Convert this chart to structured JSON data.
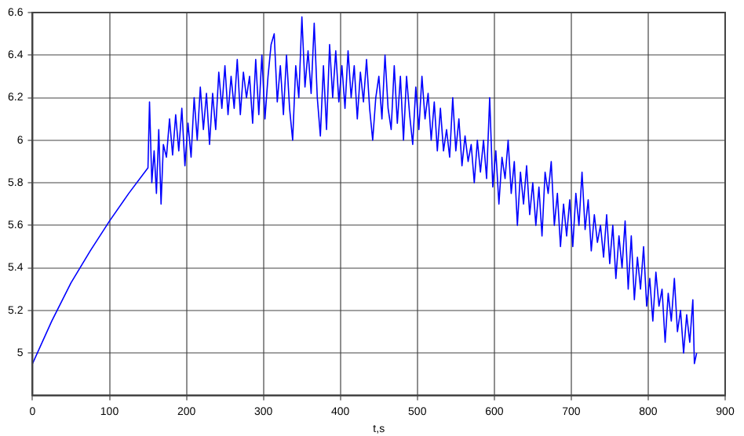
{
  "chart_data": {
    "type": "line",
    "xlabel": "t,s",
    "xlim": [
      0,
      900
    ],
    "xticks": [
      0,
      100,
      200,
      300,
      400,
      500,
      600,
      700,
      800,
      900
    ],
    "ylim": [
      4.8,
      6.6
    ],
    "yticks": [
      5,
      5.2,
      5.4,
      5.6,
      5.8,
      6,
      6.2,
      6.4,
      6.6
    ],
    "grid": true,
    "marker": "none",
    "line_style": "solid",
    "series": [
      {
        "color": "#0000ff",
        "x": [
          0,
          25,
          50,
          75,
          100,
          125,
          150,
          152,
          155,
          158,
          161,
          164,
          167,
          170,
          174,
          178,
          182,
          186,
          190,
          194,
          198,
          202,
          206,
          210,
          214,
          218,
          222,
          226,
          230,
          234,
          238,
          242,
          246,
          250,
          254,
          258,
          262,
          266,
          270,
          274,
          278,
          282,
          286,
          290,
          294,
          298,
          302,
          306,
          310,
          314,
          318,
          322,
          326,
          330,
          334,
          338,
          342,
          346,
          350,
          354,
          358,
          362,
          366,
          370,
          374,
          378,
          382,
          386,
          390,
          394,
          398,
          402,
          406,
          410,
          414,
          418,
          422,
          426,
          430,
          434,
          438,
          442,
          446,
          450,
          454,
          458,
          462,
          466,
          470,
          474,
          478,
          482,
          486,
          490,
          494,
          498,
          502,
          506,
          510,
          514,
          518,
          522,
          526,
          530,
          534,
          538,
          542,
          546,
          550,
          554,
          558,
          562,
          566,
          570,
          574,
          578,
          582,
          586,
          590,
          594,
          598,
          602,
          606,
          610,
          614,
          618,
          622,
          626,
          630,
          634,
          638,
          642,
          646,
          650,
          654,
          658,
          662,
          666,
          670,
          674,
          678,
          682,
          686,
          690,
          694,
          698,
          702,
          706,
          710,
          714,
          718,
          722,
          726,
          730,
          734,
          738,
          742,
          746,
          750,
          754,
          758,
          762,
          766,
          770,
          774,
          778,
          782,
          786,
          790,
          794,
          798,
          802,
          806,
          810,
          814,
          818,
          822,
          826,
          830,
          834,
          838,
          842,
          846,
          850,
          854,
          858,
          860,
          863
        ],
        "values": [
          4.95,
          5.15,
          5.33,
          5.48,
          5.62,
          5.75,
          5.87,
          6.18,
          5.8,
          5.95,
          5.75,
          6.05,
          5.7,
          5.98,
          5.92,
          6.1,
          5.93,
          6.12,
          5.95,
          6.15,
          5.88,
          6.08,
          5.92,
          6.2,
          6.0,
          6.25,
          6.05,
          6.22,
          5.98,
          6.22,
          6.05,
          6.32,
          6.15,
          6.35,
          6.12,
          6.3,
          6.15,
          6.38,
          6.12,
          6.32,
          6.2,
          6.3,
          6.08,
          6.38,
          6.12,
          6.4,
          6.1,
          6.3,
          6.45,
          6.5,
          6.18,
          6.35,
          6.12,
          6.4,
          6.15,
          6.0,
          6.35,
          6.2,
          6.58,
          6.25,
          6.42,
          6.22,
          6.55,
          6.2,
          6.02,
          6.35,
          6.05,
          6.45,
          6.2,
          6.42,
          6.18,
          6.35,
          6.15,
          6.42,
          6.2,
          6.35,
          6.1,
          6.32,
          6.18,
          6.38,
          6.15,
          6.0,
          6.2,
          6.3,
          6.1,
          6.4,
          6.15,
          6.05,
          6.35,
          6.08,
          6.3,
          6.0,
          6.3,
          6.12,
          5.98,
          6.25,
          6.05,
          6.3,
          6.1,
          6.22,
          6.0,
          6.18,
          5.95,
          6.15,
          5.95,
          6.05,
          5.92,
          6.2,
          5.95,
          6.1,
          5.88,
          6.02,
          5.9,
          5.98,
          5.8,
          6.0,
          5.85,
          6.0,
          5.82,
          6.2,
          5.78,
          5.95,
          5.7,
          5.92,
          5.82,
          6.0,
          5.75,
          5.9,
          5.6,
          5.85,
          5.7,
          5.88,
          5.65,
          5.8,
          5.6,
          5.78,
          5.55,
          5.85,
          5.75,
          5.9,
          5.6,
          5.75,
          5.5,
          5.7,
          5.55,
          5.72,
          5.5,
          5.75,
          5.6,
          5.85,
          5.58,
          5.72,
          5.48,
          5.65,
          5.52,
          5.6,
          5.45,
          5.65,
          5.42,
          5.6,
          5.35,
          5.55,
          5.4,
          5.62,
          5.3,
          5.55,
          5.25,
          5.45,
          5.3,
          5.5,
          5.22,
          5.35,
          5.15,
          5.38,
          5.22,
          5.3,
          5.05,
          5.28,
          5.15,
          5.35,
          5.1,
          5.2,
          5.0,
          5.18,
          5.05,
          5.25,
          4.95,
          5.0
        ]
      }
    ]
  }
}
